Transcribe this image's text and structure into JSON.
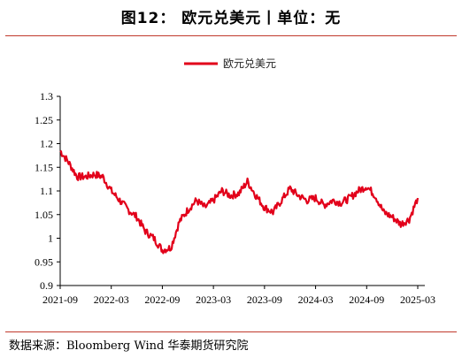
{
  "title": "图12：   欧元兑美元丨单位：无",
  "source": "数据来源：Bloomberg Wind 华泰期货研究院",
  "colors": {
    "series": "#e2001a",
    "rule": "#c0392b"
  },
  "chart_data": {
    "type": "line",
    "title": "图12：   欧元兑美元丨单位：无",
    "xlabel": "",
    "ylabel": "",
    "ylim": [
      0.9,
      1.3
    ],
    "yticks": [
      0.9,
      0.95,
      1,
      1.05,
      1.1,
      1.15,
      1.2,
      1.25,
      1.3
    ],
    "xticks": [
      "2021-09",
      "2022-03",
      "2022-09",
      "2023-03",
      "2023-09",
      "2024-03",
      "2024-09",
      "2025-03"
    ],
    "legend": "top-center",
    "grid": false,
    "series": [
      {
        "name": "欧元兑美元",
        "x": [
          "2021-09",
          "2021-10",
          "2021-11",
          "2021-12",
          "2022-01",
          "2022-02",
          "2022-03",
          "2022-04",
          "2022-05",
          "2022-06",
          "2022-07",
          "2022-08",
          "2022-09",
          "2022-10",
          "2022-11",
          "2022-12",
          "2023-01",
          "2023-02",
          "2023-03",
          "2023-04",
          "2023-05",
          "2023-06",
          "2023-07",
          "2023-08",
          "2023-09",
          "2023-10",
          "2023-11",
          "2023-12",
          "2024-01",
          "2024-02",
          "2024-03",
          "2024-04",
          "2024-05",
          "2024-06",
          "2024-07",
          "2024-08",
          "2024-09",
          "2024-10",
          "2024-11",
          "2024-12",
          "2025-01",
          "2025-02",
          "2025-03"
        ],
        "values": [
          1.185,
          1.16,
          1.13,
          1.13,
          1.135,
          1.13,
          1.1,
          1.08,
          1.06,
          1.045,
          1.015,
          1.0,
          0.975,
          0.98,
          1.035,
          1.06,
          1.08,
          1.065,
          1.08,
          1.1,
          1.09,
          1.095,
          1.12,
          1.09,
          1.065,
          1.055,
          1.08,
          1.105,
          1.09,
          1.08,
          1.085,
          1.07,
          1.08,
          1.075,
          1.085,
          1.1,
          1.11,
          1.09,
          1.055,
          1.045,
          1.03,
          1.04,
          1.085
        ]
      }
    ]
  }
}
